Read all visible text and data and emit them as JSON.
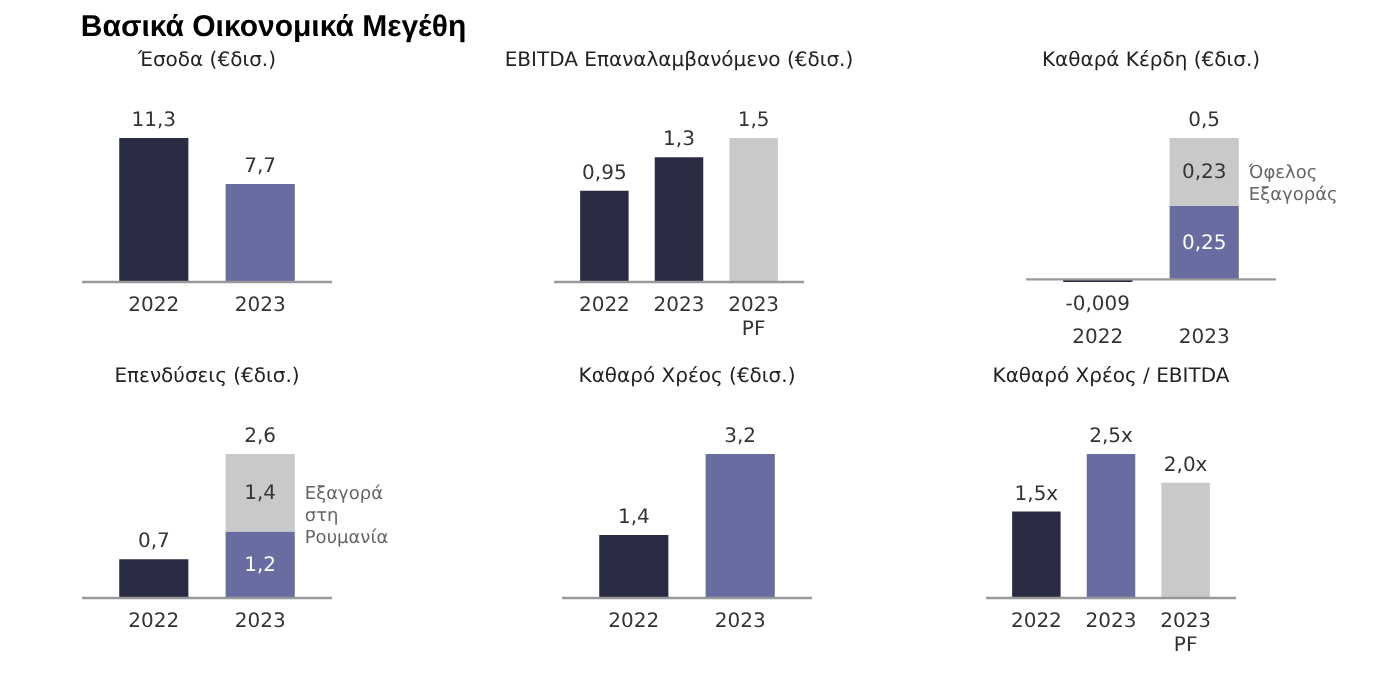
{
  "chart_data": [
    {
      "type": "other",
      "title": "Βασικά Οικονομικά Μεγέθη"
    },
    {
      "type": "bar",
      "title": "Έσοδα (€δισ.)",
      "categories": [
        "2022",
        "2023"
      ],
      "values": [
        11.3,
        7.7
      ],
      "colors": [
        "#2a2c44",
        "#696ca1"
      ],
      "value_labels": [
        "11,3",
        "7,7"
      ],
      "tick_labels": "x"
    },
    {
      "type": "bar",
      "title": "EBITDA Επαναλαμβανόμενο (€δισ.)",
      "categories": [
        "2022",
        "2023",
        "2023 PF"
      ],
      "values": [
        0.95,
        1.3,
        1.5
      ],
      "colors": [
        "#2a2c44",
        "#2a2c44",
        "#c9c9c9"
      ],
      "value_labels": [
        "0,95",
        "1,3",
        "1,5"
      ],
      "tick_labels": "x"
    },
    {
      "type": "bar",
      "title": "Καθαρά Κέρδη (€δισ.)",
      "categories": [
        "2022",
        "2023"
      ],
      "stacked": true,
      "tick_labels": "x",
      "totals": [
        null,
        "0,5"
      ],
      "series": [
        {
          "colors": [
            "#2a2c44",
            "#696ca1"
          ],
          "values": [
            -0.009,
            0.25
          ],
          "value_labels": [
            "-0,009",
            "0,25"
          ]
        },
        {
          "name": "Όφελος Εξαγοράς",
          "color": "#c9c9c9",
          "values": [
            null,
            0.23
          ],
          "value_labels": [
            null,
            "0,23"
          ]
        }
      ]
    },
    {
      "type": "bar",
      "title": "Επενδύσεις (€δισ.)",
      "categories": [
        "2022",
        "2023"
      ],
      "stacked": true,
      "tick_labels": "x",
      "totals": [
        null,
        "2,6"
      ],
      "series": [
        {
          "colors": [
            "#2a2c44",
            "#696ca1"
          ],
          "values": [
            0.7,
            1.2
          ],
          "value_labels": [
            "0,7",
            "1,2"
          ]
        },
        {
          "name": "Εξαγορά στη Ρουμανία",
          "color": "#c9c9c9",
          "values": [
            null,
            1.4
          ],
          "value_labels": [
            null,
            "1,4"
          ]
        }
      ]
    },
    {
      "type": "bar",
      "title": "Καθαρό Χρέος (€δισ.)",
      "categories": [
        "2022",
        "2023"
      ],
      "values": [
        1.4,
        3.2
      ],
      "colors": [
        "#2a2c44",
        "#696ca1"
      ],
      "value_labels": [
        "1,4",
        "3,2"
      ],
      "tick_labels": "x"
    },
    {
      "type": "bar",
      "title": "Καθαρό Χρέος / EBITDA",
      "categories": [
        "2022",
        "2023",
        "2023 PF"
      ],
      "values": [
        1.5,
        2.5,
        2.0
      ],
      "colors": [
        "#2a2c44",
        "#696ca1",
        "#c9c9c9"
      ],
      "value_labels": [
        "1,5x",
        "2,5x",
        "2,0x"
      ],
      "tick_labels": "x"
    }
  ]
}
